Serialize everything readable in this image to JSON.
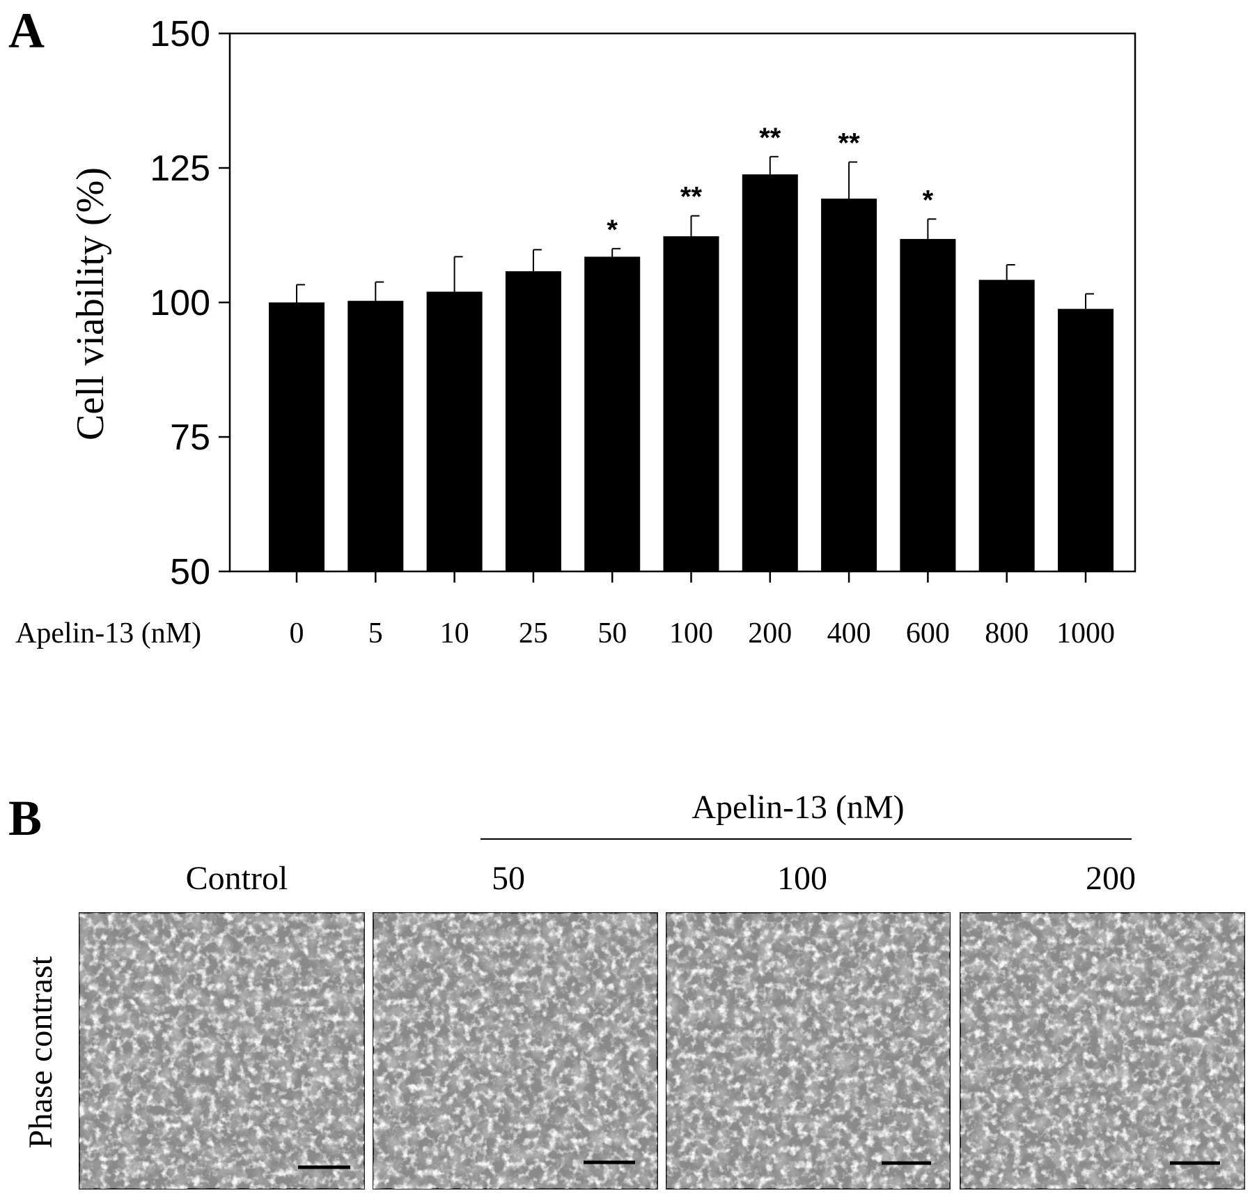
{
  "chart_data": {
    "type": "bar",
    "panel_label": "A",
    "ylabel": "Cell viability (%)",
    "xlabel": "Apelin-13 (nM)",
    "ylim": [
      50,
      150
    ],
    "yticks": [
      "50",
      "75",
      "100",
      "125",
      "150"
    ],
    "categories": [
      "0",
      "5",
      "10",
      "25",
      "50",
      "100",
      "200",
      "400",
      "600",
      "800",
      "1000"
    ],
    "values": [
      100,
      100.3,
      102,
      105.8,
      108.5,
      112.3,
      123.8,
      119.3,
      111.8,
      104.2,
      98.8
    ],
    "errors": [
      3.3,
      3.5,
      6.5,
      4.0,
      1.5,
      3.8,
      3.3,
      6.8,
      3.7,
      2.8,
      2.8
    ],
    "significance": [
      "",
      "",
      "",
      "",
      "*",
      "**",
      "**",
      "**",
      "*",
      "",
      ""
    ],
    "bar_color": "#000000",
    "grid": false
  },
  "panel_b": {
    "label": "B",
    "group_label": "Apelin-13 (nM)",
    "row_label": "Phase contrast",
    "columns": [
      "Control",
      "50",
      "100",
      "200"
    ]
  }
}
